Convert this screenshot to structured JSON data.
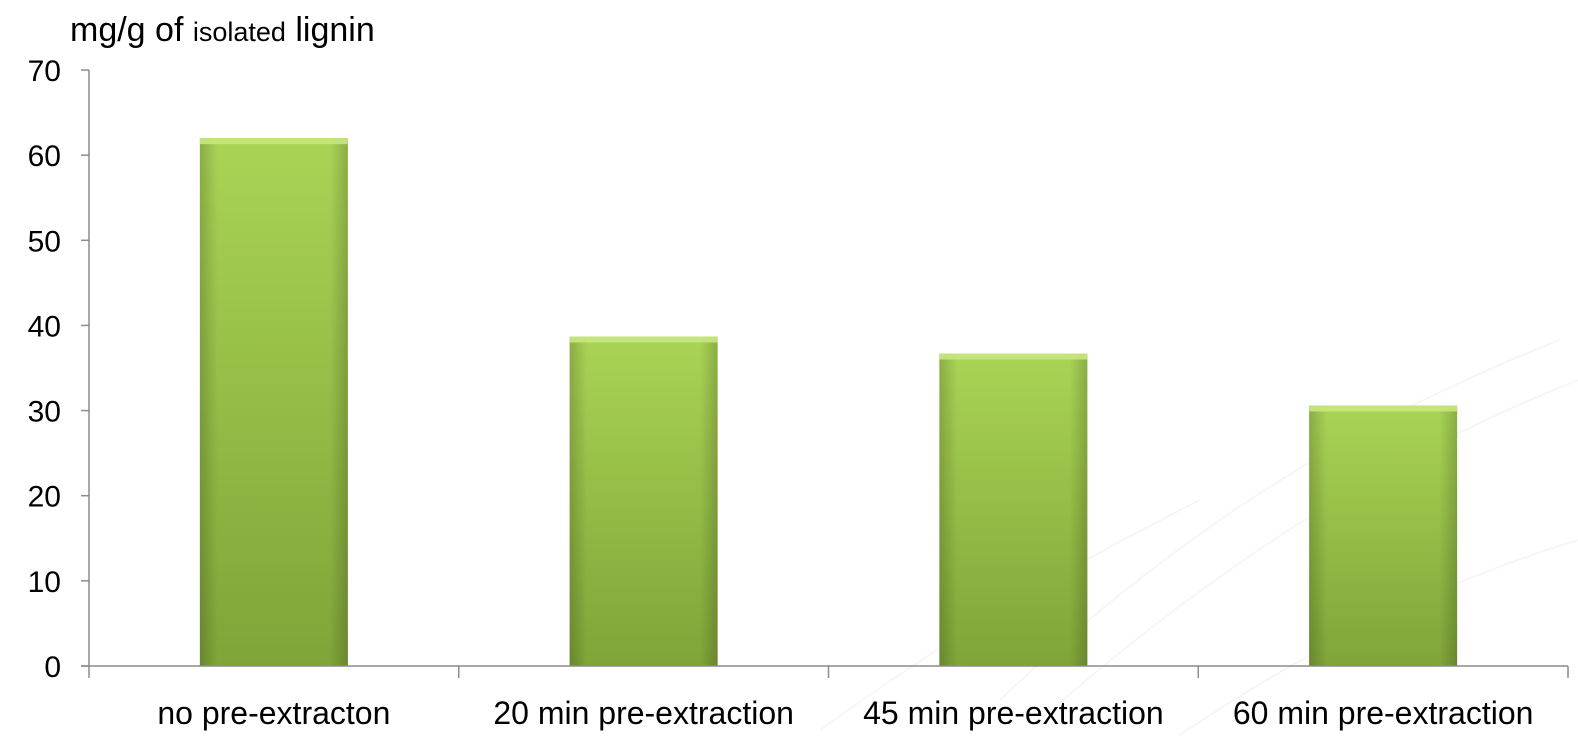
{
  "chart_data": {
    "type": "bar",
    "title": "",
    "ylabel_parts": [
      "mg/g of ",
      "isolated",
      " lignin"
    ],
    "xlabel": "",
    "categories": [
      "no pre-extracton",
      "20 min pre-extraction",
      "45 min pre-extraction",
      "60 min pre-extraction"
    ],
    "series": [
      {
        "values": [
          62,
          38.7,
          36.7,
          30.6
        ]
      }
    ],
    "ylim": [
      0,
      70
    ],
    "yticks": [
      "0",
      "10",
      "20",
      "30",
      "40",
      "50",
      "60",
      "70"
    ],
    "grid": false,
    "legend": "none",
    "bar_color": "#97C145",
    "bar_color_light": "#A9D455",
    "bar_color_dark": "#7FA438",
    "axis_color": "#8C8C8C"
  }
}
